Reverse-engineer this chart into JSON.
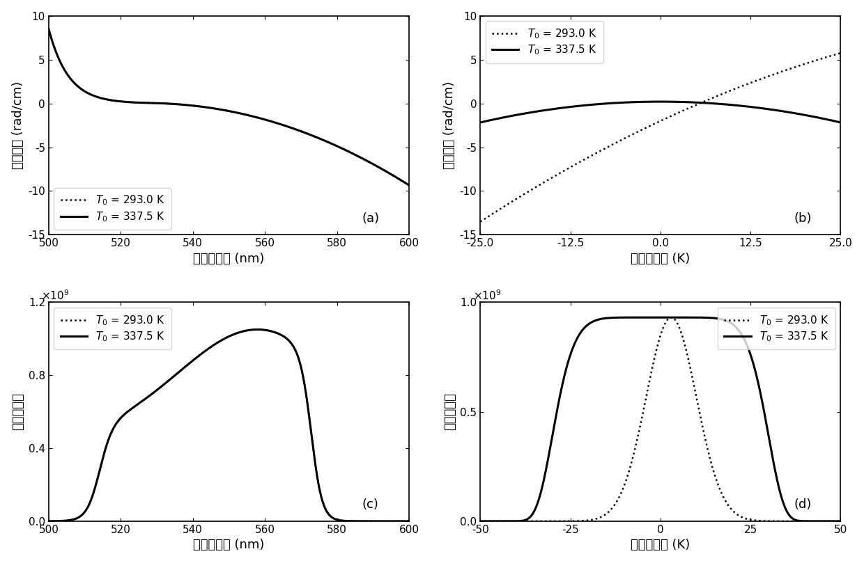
{
  "subplot_a": {
    "xlabel": "信号光波长 (nm)",
    "ylabel": "波矢失配 (rad/cm)",
    "xlim": [
      500,
      600
    ],
    "ylim": [
      -15,
      10
    ],
    "xticks": [
      500,
      520,
      540,
      560,
      580,
      600
    ],
    "yticks": [
      -15,
      -10,
      -5,
      0,
      5,
      10
    ],
    "label": "(a)",
    "legend_T293": "$T_0$ = 293.0 K",
    "legend_T337": "$T_0$ = 337.5 K",
    "legend_loc": "lower left"
  },
  "subplot_b": {
    "xlabel": "温度偏移量 (K)",
    "ylabel": "波矢失配 (rad/cm)",
    "xlim": [
      -25,
      25
    ],
    "ylim": [
      -15,
      10
    ],
    "xticks": [
      -25.0,
      -12.5,
      0,
      12.5,
      25.0
    ],
    "yticks": [
      -15,
      -10,
      -5,
      0,
      5,
      10
    ],
    "label": "(b)",
    "legend_T293": "$T_0$ = 293.0 K",
    "legend_T337": "$T_0$ = 337.5 K",
    "legend_loc": "upper left"
  },
  "subplot_c": {
    "xlabel": "信号光波长 (nm)",
    "ylabel": "小信号增益",
    "xlim": [
      500,
      600
    ],
    "ylim": [
      0.0,
      1200000000.0
    ],
    "xticks": [
      500,
      520,
      540,
      560,
      580,
      600
    ],
    "yticks": [
      0.0,
      400000000.0,
      800000000.0,
      1200000000.0
    ],
    "ytick_labels": [
      "0.0",
      "0.4",
      "0.8",
      "1.2"
    ],
    "label": "(c)",
    "legend_T293": "$T_0$ = 293.0 K",
    "legend_T337": "$T_0$ = 337.5 K",
    "legend_loc": "upper left"
  },
  "subplot_d": {
    "xlabel": "温度偏移量 (K)",
    "ylabel": "小信号增益",
    "xlim": [
      -50,
      50
    ],
    "ylim": [
      0.0,
      1000000000.0
    ],
    "xticks": [
      -50.0,
      -25.0,
      0,
      25.0,
      50.0
    ],
    "yticks": [
      0.0,
      500000000.0,
      1000000000.0
    ],
    "ytick_labels": [
      "0.0",
      "0.5",
      "1.0"
    ],
    "label": "(d)",
    "legend_T293": "$T_0$ = 293.0 K",
    "legend_T337": "$T_0$ = 337.5 K",
    "legend_loc": "upper right"
  }
}
